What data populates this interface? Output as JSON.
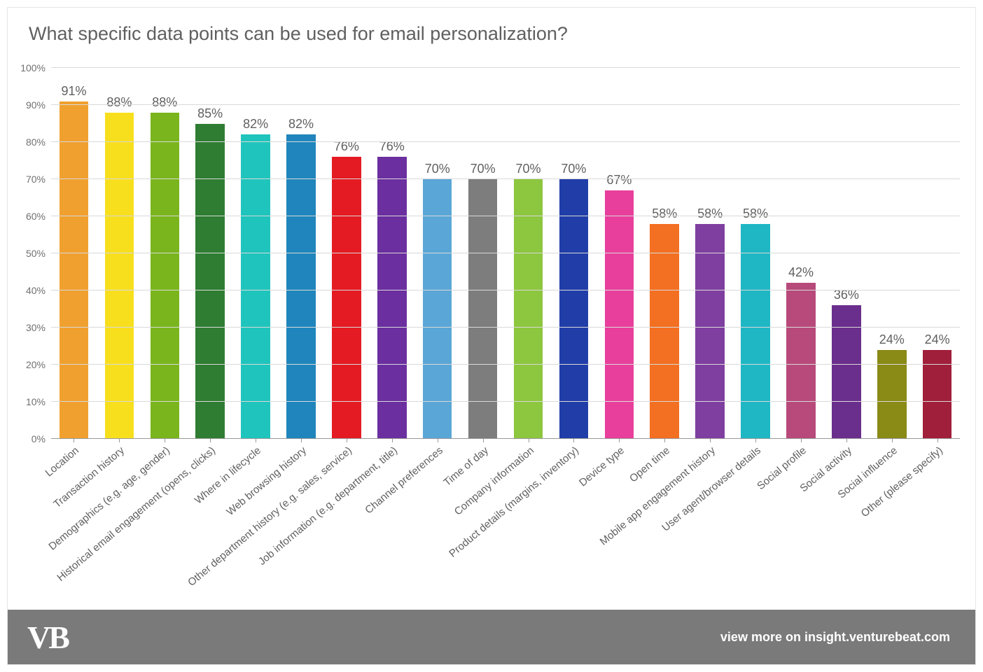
{
  "chart": {
    "type": "bar",
    "title": "What specific data points can be used for email personalization?",
    "title_fontsize": 27,
    "title_color": "#606060",
    "background_color": "#ffffff",
    "grid_color": "#d9d9d9",
    "axis_color": "#999999",
    "ylim": [
      0,
      100
    ],
    "ytick_step": 10,
    "ytick_suffix": "%",
    "ytick_fontsize": 14,
    "ytick_color": "#707070",
    "bar_label_fontsize": 18,
    "bar_label_color": "#606060",
    "xlabel_fontsize": 15,
    "xlabel_color": "#606060",
    "xlabel_rotation_deg": -40,
    "bar_width_ratio": 0.64,
    "categories": [
      "Location",
      "Transaction history",
      "Demographics (e.g. age, gender)",
      "Historical email engagement (opens, clicks)",
      "Where in lifecycle",
      "Web browsing history",
      "Other department history (e.g. sales, service)",
      "Job information (e.g. department, title)",
      "Channel preferences",
      "Time of day",
      "Company information",
      "Product details (margins, inventory)",
      "Device type",
      "Open time",
      "Mobile app engagement history",
      "User agent/browser details",
      "Social profile",
      "Social activity",
      "Social influence",
      "Other (please specify)"
    ],
    "values": [
      91,
      88,
      88,
      85,
      82,
      82,
      76,
      76,
      70,
      70,
      70,
      70,
      67,
      58,
      58,
      58,
      42,
      36,
      24,
      24
    ],
    "bar_colors": [
      "#f0a02f",
      "#f8df1e",
      "#7ab51d",
      "#2f7d32",
      "#1fc4bc",
      "#1f85bc",
      "#e41b23",
      "#6b2fa0",
      "#5aa6d6",
      "#7d7d7d",
      "#8dc63f",
      "#213ea8",
      "#e83f9c",
      "#f36f21",
      "#7f3fa0",
      "#1fb7c4",
      "#b84a7b",
      "#6a2e8c",
      "#8a8a17",
      "#a01f3a"
    ]
  },
  "footer": {
    "logo_text": "VB",
    "logo_fontsize": 46,
    "text": "view more on insight.venturebeat.com",
    "text_fontsize": 18,
    "background_color": "#7a7a7a",
    "text_color": "#ffffff"
  }
}
